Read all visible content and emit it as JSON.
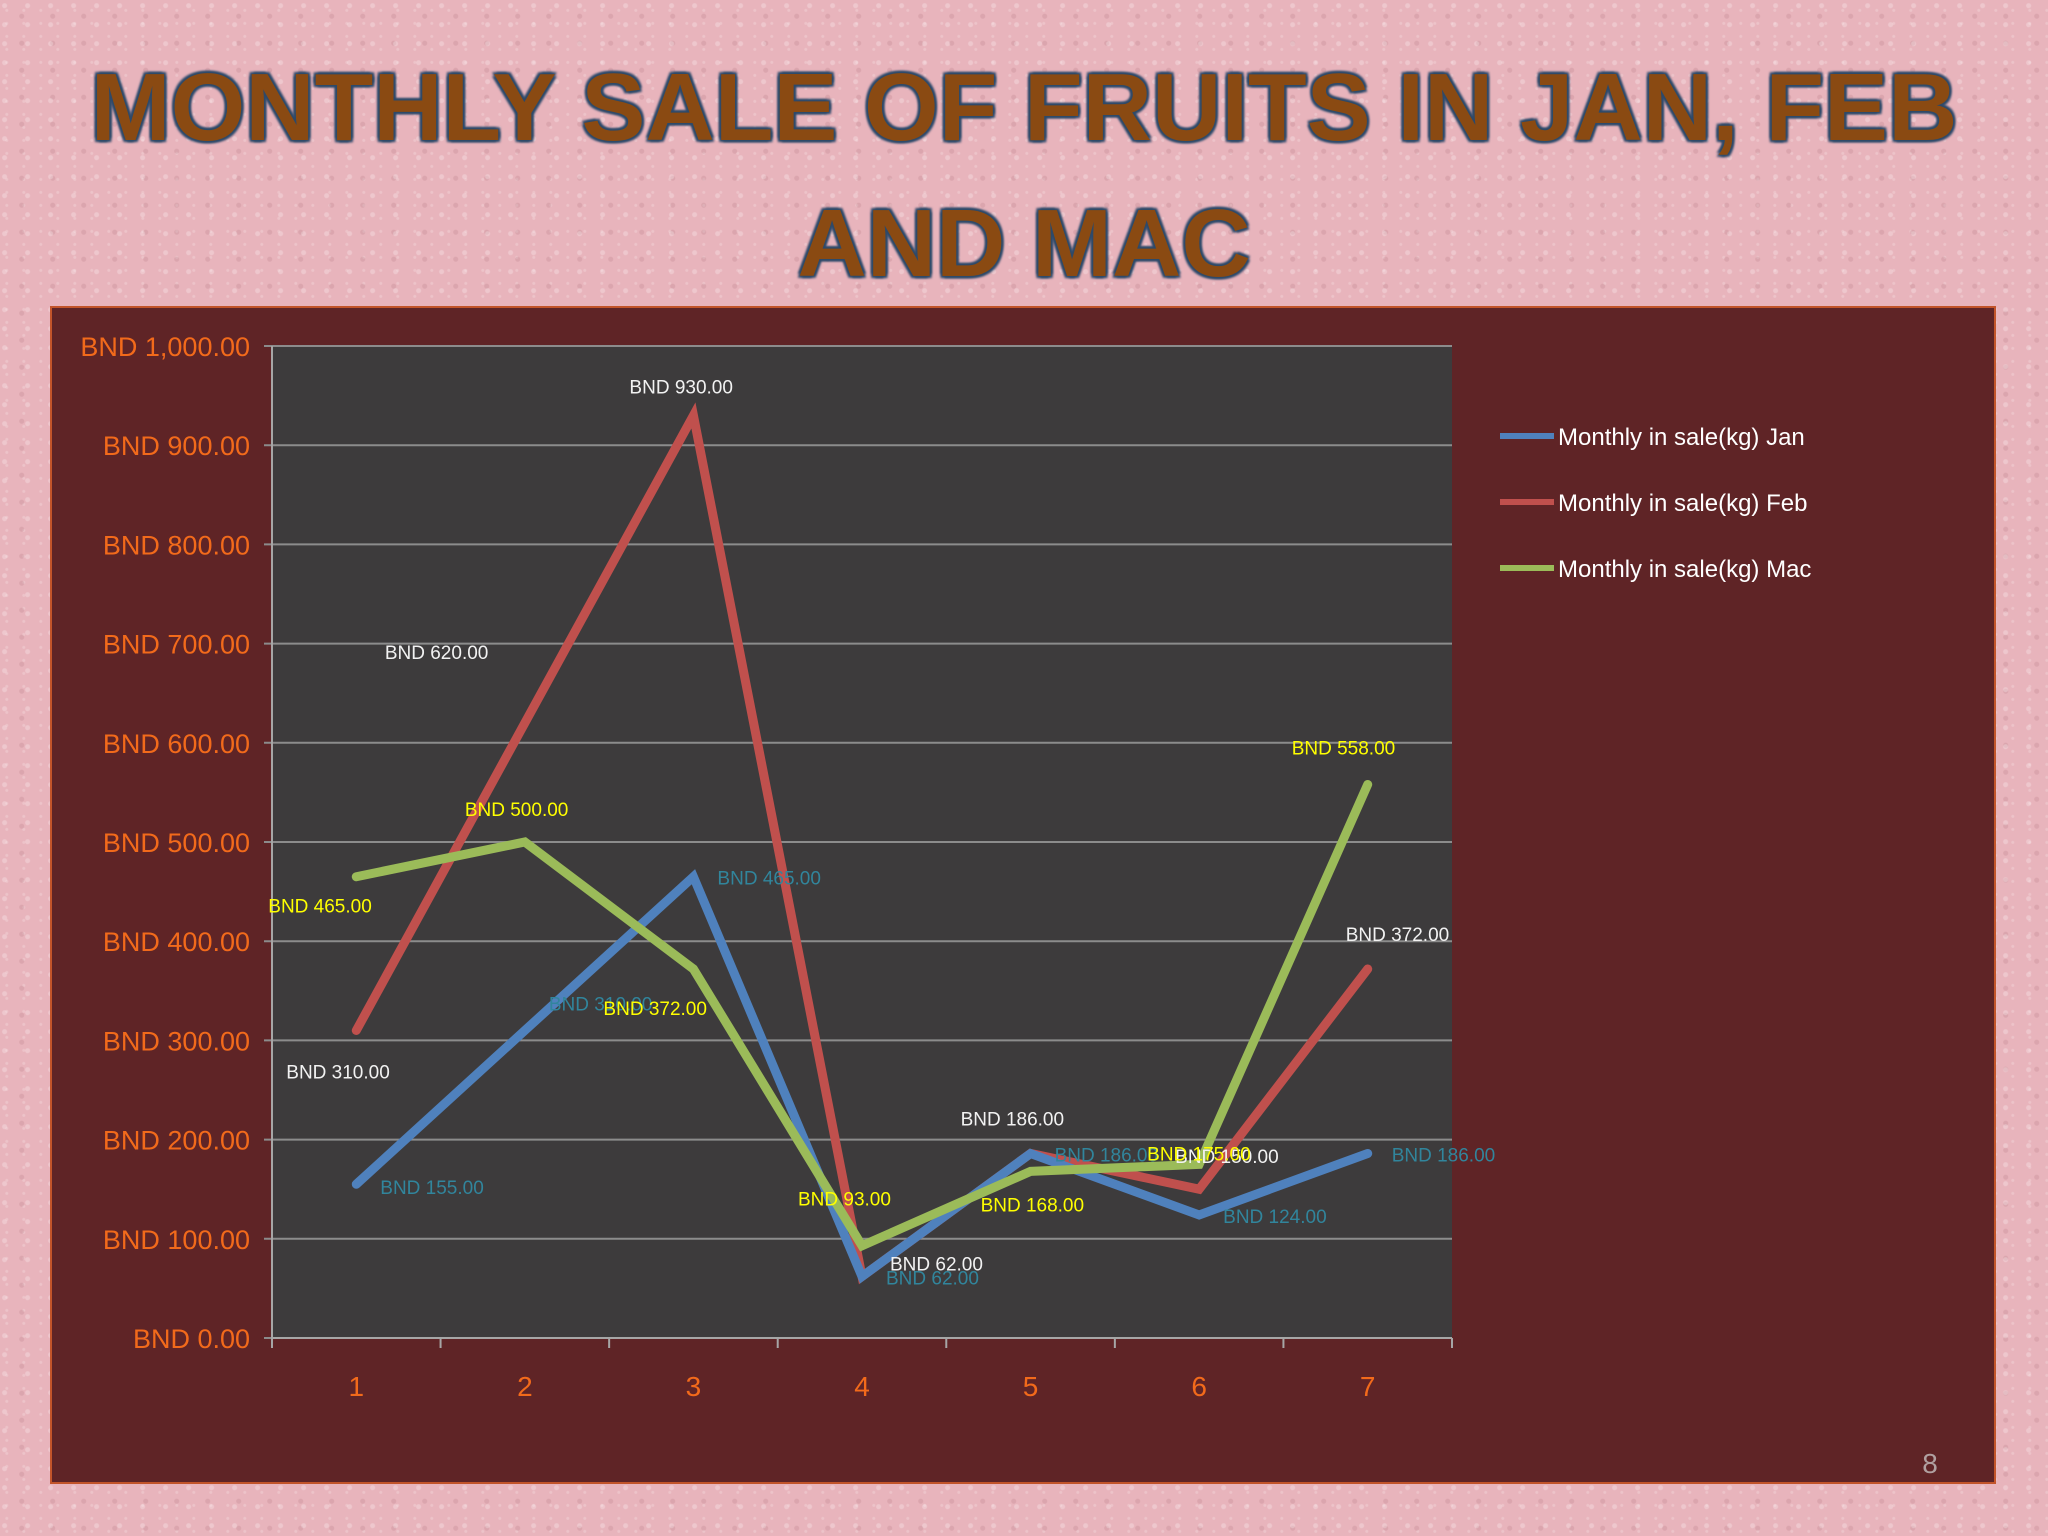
{
  "slide": {
    "title_line1": "MONTHLY SALE OF FRUITS IN JAN, FEB",
    "title_line2": "AND MAC",
    "page_number": "8"
  },
  "colors": {
    "jan": "#4f81bd",
    "feb": "#c0504d",
    "mac": "#9bbb59",
    "plot_bg": "#3d3b3c",
    "panel_bg": "#5f2426",
    "axis_text": "#f26a1b",
    "label_jan": "#31859c",
    "label_feb": "#f2f2f2",
    "label_mac": "#ffff00"
  },
  "chart_data": {
    "type": "line",
    "title": "MONTHLY SALE OF FRUITS IN JAN, FEB AND MAC",
    "xlabel": "",
    "ylabel": "",
    "categories": [
      "1",
      "2",
      "3",
      "4",
      "5",
      "6",
      "7"
    ],
    "ylim": [
      0,
      1000
    ],
    "ytick_values": [
      0,
      100,
      200,
      300,
      400,
      500,
      600,
      700,
      800,
      900,
      1000
    ],
    "ytick_labels": [
      "BND 0.00",
      "BND 100.00",
      "BND 200.00",
      "BND 300.00",
      "BND 400.00",
      "BND 500.00",
      "BND 600.00",
      "BND 700.00",
      "BND 800.00",
      "BND 900.00",
      "BND 1,000.00"
    ],
    "grid": true,
    "legend_position": "right",
    "series": [
      {
        "key": "jan",
        "name": "Monthly in sale(kg) Jan",
        "values": [
          155,
          310,
          465,
          62,
          186,
          124,
          186
        ],
        "labels": [
          "BND 155.00",
          "BND 310.00",
          "BND 465.00",
          "BND 62.00",
          "BND 186.00",
          "BND 124.00",
          "BND 186.00"
        ]
      },
      {
        "key": "feb",
        "name": "Monthly in sale(kg) Feb",
        "values": [
          310,
          620,
          930,
          62,
          186,
          150,
          372
        ],
        "labels": [
          "BND 310.00",
          "BND 620.00",
          "BND 930.00",
          "BND 62.00",
          "BND 186.00",
          "BND 150.00",
          "BND 372.00"
        ]
      },
      {
        "key": "mac",
        "name": "Monthly in sale(kg) Mac",
        "values": [
          465,
          500,
          372,
          93,
          168,
          175,
          558
        ],
        "labels": [
          "BND 465.00",
          "BND 500.00",
          "BND 372.00",
          "BND 93.00",
          "BND 168.00",
          "BND 175.00",
          "BND 558.00"
        ]
      }
    ]
  }
}
